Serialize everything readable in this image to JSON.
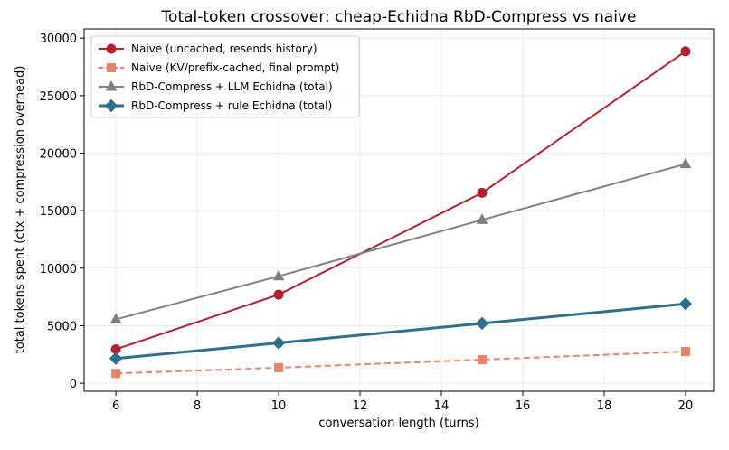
{
  "chart_data": {
    "type": "line",
    "title": "Total-token crossover: cheap-Echidna RbD-Compress vs naive",
    "x_label": "conversation length (turns)",
    "y_label": "total tokens spent (ctx + compression overhead)",
    "x": [
      6,
      10,
      15,
      20
    ],
    "series": [
      {
        "name": "Naive (uncached, resends history)",
        "color": "#b5202e",
        "marker": "circle",
        "dash": "solid",
        "values": [
          2950,
          7700,
          16550,
          28850
        ]
      },
      {
        "name": "Naive (KV/prefix-cached, final prompt)",
        "color": "#e8836a",
        "marker": "square",
        "dash": "dashed",
        "values": [
          850,
          1350,
          2050,
          2750
        ]
      },
      {
        "name": "RbD-Compress + LLM Echidna (total)",
        "color": "#808080",
        "marker": "triangle",
        "dash": "solid",
        "values": [
          5550,
          9300,
          14200,
          19050
        ]
      },
      {
        "name": "RbD-Compress + rule Echidna (total)",
        "color": "#2e6e8e",
        "marker": "diamond",
        "dash": "solid",
        "values": [
          2150,
          3500,
          5200,
          6900
        ]
      }
    ],
    "xlim": [
      5.22,
      20.69
    ],
    "xticks": [
      6,
      8,
      10,
      12,
      14,
      16,
      18,
      20
    ],
    "ylim": [
      -700,
      30800
    ],
    "yticks": [
      0,
      5000,
      10000,
      15000,
      20000,
      25000,
      30000
    ],
    "grid": true,
    "legend": "upper-left"
  }
}
